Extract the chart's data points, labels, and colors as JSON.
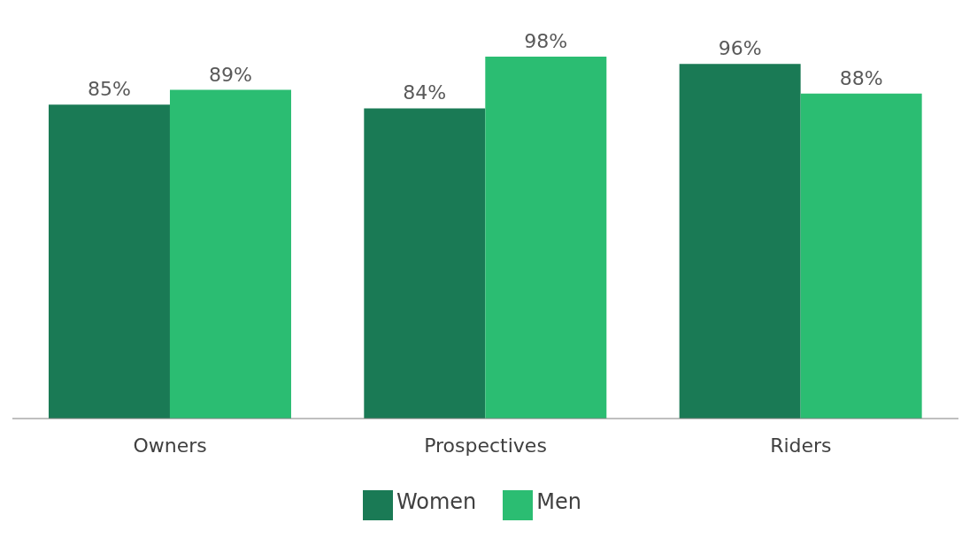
{
  "chart_data": {
    "type": "bar",
    "categories": [
      "Owners",
      "Prospectives",
      "Riders"
    ],
    "series": [
      {
        "name": "Women",
        "color": "#1a7a55",
        "values": [
          85,
          84,
          96
        ],
        "value_labels": [
          "85%",
          "84%",
          "96%"
        ]
      },
      {
        "name": "Men",
        "color": "#2bbd72",
        "values": [
          89,
          98,
          88
        ],
        "value_labels": [
          "89%",
          "98%",
          "88%"
        ]
      }
    ],
    "grid": false,
    "legend": "bottom"
  }
}
